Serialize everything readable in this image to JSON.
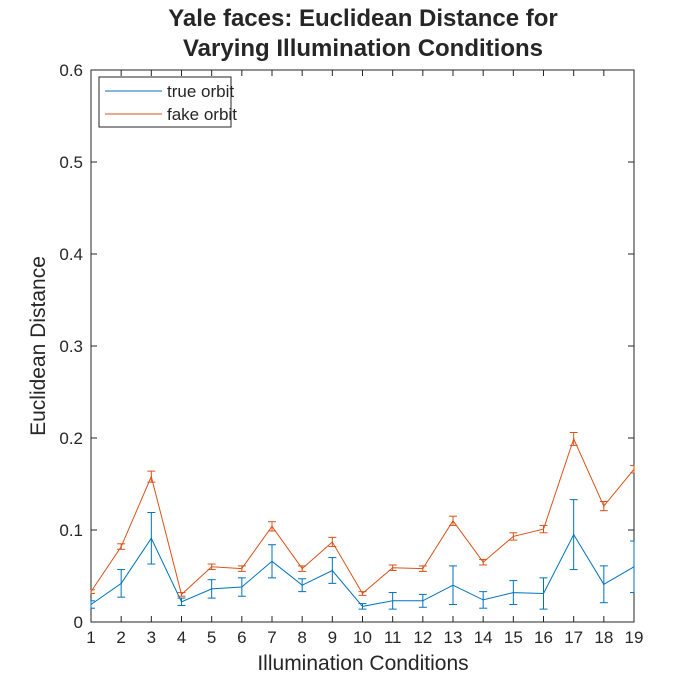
{
  "chart_data": {
    "type": "line",
    "title": [
      "Yale faces: Euclidean Distance for",
      "Varying Illumination Conditions"
    ],
    "xlabel": "Illumination Conditions",
    "ylabel": "Euclidean Distance",
    "xlim": [
      1,
      19
    ],
    "ylim": [
      0,
      0.6
    ],
    "xticks": [
      1,
      2,
      3,
      4,
      5,
      6,
      7,
      8,
      9,
      10,
      11,
      12,
      13,
      14,
      15,
      16,
      17,
      18,
      19
    ],
    "yticks": [
      0,
      0.1,
      0.2,
      0.3,
      0.4,
      0.5,
      0.6
    ],
    "ytick_labels": [
      "0",
      "0.1",
      "0.2",
      "0.3",
      "0.4",
      "0.5",
      "0.6"
    ],
    "grid": false,
    "legend_position": "top-left",
    "x": [
      1,
      2,
      3,
      4,
      5,
      6,
      7,
      8,
      9,
      10,
      11,
      12,
      13,
      14,
      15,
      16,
      17,
      18,
      19
    ],
    "series": [
      {
        "name": "true orbit",
        "color": "#0072bd",
        "values": [
          0.019,
          0.042,
          0.091,
          0.022,
          0.036,
          0.038,
          0.066,
          0.04,
          0.056,
          0.017,
          0.023,
          0.023,
          0.04,
          0.024,
          0.032,
          0.031,
          0.095,
          0.041,
          0.06
        ],
        "error": [
          0.004,
          0.015,
          0.028,
          0.004,
          0.01,
          0.01,
          0.018,
          0.007,
          0.014,
          0.003,
          0.009,
          0.007,
          0.021,
          0.009,
          0.013,
          0.017,
          0.038,
          0.02,
          0.028
        ]
      },
      {
        "name": "fake orbit",
        "color": "#d95319",
        "values": [
          0.033,
          0.082,
          0.158,
          0.03,
          0.06,
          0.058,
          0.104,
          0.058,
          0.087,
          0.031,
          0.059,
          0.058,
          0.11,
          0.065,
          0.093,
          0.101,
          0.199,
          0.126,
          0.166
        ],
        "error": [
          0.002,
          0.003,
          0.006,
          0.002,
          0.003,
          0.003,
          0.005,
          0.003,
          0.005,
          0.002,
          0.003,
          0.003,
          0.005,
          0.003,
          0.004,
          0.004,
          0.007,
          0.005,
          0.004
        ]
      }
    ]
  }
}
